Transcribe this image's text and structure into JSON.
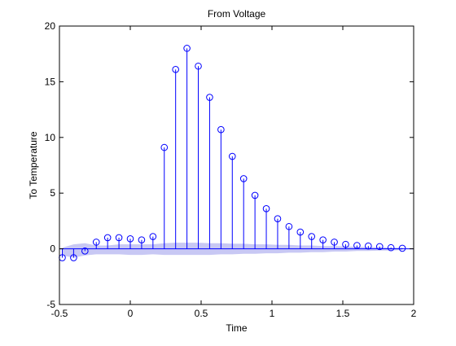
{
  "chart_data": {
    "type": "stem",
    "title": "From Voltage",
    "xlabel": "Time",
    "ylabel": "To Temperature",
    "xlim": [
      -0.5,
      2
    ],
    "ylim": [
      -5,
      20
    ],
    "xticks": [
      -0.5,
      0,
      0.5,
      1,
      1.5,
      2
    ],
    "xtick_labels": [
      "-0.5",
      "0",
      "0.5",
      "1",
      "1.5",
      "2"
    ],
    "yticks": [
      -5,
      0,
      5,
      10,
      15,
      20
    ],
    "ytick_labels": [
      "-5",
      "0",
      "5",
      "10",
      "15",
      "20"
    ],
    "grid": false,
    "legend": "none",
    "stem_color": "#0000ff",
    "band_color": "#c8c8f4",
    "baseline_color": "#0000ff",
    "series": [
      {
        "x": [
          -0.48,
          -0.4,
          -0.32,
          -0.24,
          -0.16,
          -0.08,
          0,
          0.08,
          0.16,
          0.24,
          0.32,
          0.4,
          0.48,
          0.56,
          0.64,
          0.72,
          0.8,
          0.88,
          0.96,
          1.04,
          1.12,
          1.2,
          1.28,
          1.36,
          1.44,
          1.52,
          1.6,
          1.68,
          1.76,
          1.84,
          1.92
        ],
        "values": [
          -0.8,
          -0.8,
          -0.2,
          0.6,
          1.0,
          1.0,
          0.9,
          0.8,
          1.1,
          9.1,
          16.1,
          18.0,
          16.4,
          13.6,
          10.7,
          8.3,
          6.3,
          4.8,
          3.6,
          2.7,
          2.0,
          1.5,
          1.1,
          0.8,
          0.6,
          0.4,
          0.3,
          0.25,
          0.2,
          0.1,
          0.05
        ]
      }
    ],
    "confidence_band": {
      "x": [
        -0.48,
        -0.4,
        -0.32,
        -0.24,
        -0.16,
        -0.08,
        0,
        0.08,
        0.16,
        0.24,
        0.32,
        0.4,
        0.48,
        0.56,
        0.64,
        0.72,
        0.8,
        0.88,
        0.96,
        1.04,
        1.12,
        1.2,
        1.28,
        1.36,
        1.44,
        1.52,
        1.6,
        1.68,
        1.76,
        1.84,
        1.92
      ],
      "upper": [
        0.1,
        0.4,
        0.5,
        0.3,
        0.3,
        0.4,
        0.4,
        0.4,
        0.4,
        0.5,
        0.55,
        0.55,
        0.55,
        0.5,
        0.5,
        0.45,
        0.45,
        0.4,
        0.4,
        0.35,
        0.35,
        0.3,
        0.3,
        0.25,
        0.25,
        0.2,
        0.2,
        0.15,
        0.15,
        0.1,
        0.1
      ],
      "lower": [
        -0.6,
        -0.8,
        -0.6,
        -0.5,
        -0.5,
        -0.5,
        -0.55,
        -0.55,
        -0.5,
        -0.55,
        -0.55,
        -0.55,
        -0.55,
        -0.55,
        -0.5,
        -0.5,
        -0.45,
        -0.45,
        -0.4,
        -0.4,
        -0.35,
        -0.35,
        -0.3,
        -0.3,
        -0.25,
        -0.25,
        -0.2,
        -0.2,
        -0.15,
        -0.15,
        -0.1
      ]
    }
  }
}
